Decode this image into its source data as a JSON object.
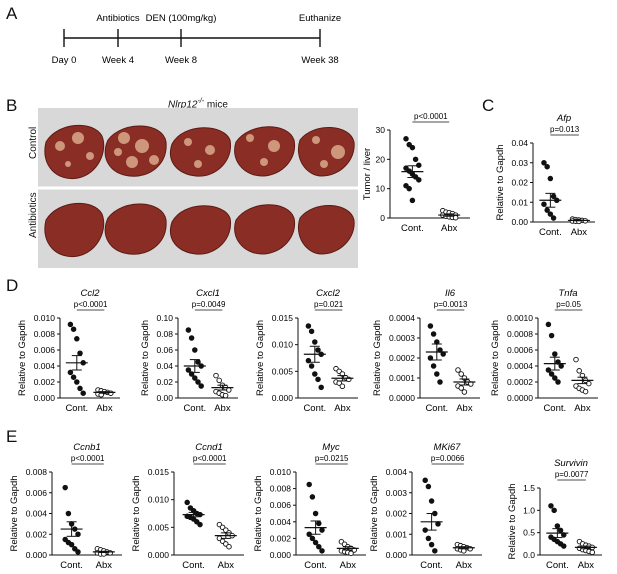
{
  "panels": {
    "A": "A",
    "B": "B",
    "C": "C",
    "D": "D",
    "E": "E"
  },
  "timeline": {
    "events": [
      {
        "above": "",
        "below": "Day 0",
        "pos": 0
      },
      {
        "above": "Antibiotics",
        "below": "Week 4",
        "pos": 4
      },
      {
        "above": "DEN (100mg/kg)",
        "below": "Week 8",
        "pos": 8
      },
      {
        "above": "Euthanize",
        "below": "Week 38",
        "pos": 38
      }
    ]
  },
  "liver_images": {
    "title_gene": "Nlrp12",
    "title_sup": "-/-",
    "title_suffix": " mice",
    "rows": [
      "Control",
      "Antibiotics"
    ],
    "colors": {
      "liver": "#8a2e25",
      "liver_dark": "#5e1a14",
      "tumor": "#d9a98c",
      "background": "#d8d8d8"
    }
  },
  "chart_data": [
    {
      "id": "B",
      "type": "scatter",
      "title": "",
      "ylabel": "Tumor / liver",
      "ylim": [
        0,
        30
      ],
      "yticks": [
        "0",
        "10",
        "20",
        "30"
      ],
      "categories": [
        "Cont.",
        "Abx"
      ],
      "pvalue": "p<0.0001",
      "series": [
        {
          "name": "Cont.",
          "filled": true,
          "mean": 15.8,
          "sem": 2.0,
          "values": [
            27,
            25,
            24,
            20,
            18,
            17,
            16,
            15,
            14,
            13,
            11,
            10,
            6
          ]
        },
        {
          "name": "Abx",
          "filled": false,
          "mean": 1.0,
          "sem": 0.4,
          "values": [
            2.5,
            2,
            1.8,
            1.5,
            1,
            1,
            0.6,
            0.4,
            0.2,
            0.1
          ]
        }
      ]
    },
    {
      "id": "C",
      "type": "scatter",
      "title": "Afp",
      "ylabel": "Relative to Gapdh",
      "ylim": [
        0,
        0.04
      ],
      "yticks": [
        "0.00",
        "0.01",
        "0.02",
        "0.03",
        "0.04"
      ],
      "categories": [
        "Cont.",
        "Abx"
      ],
      "pvalue": "p=0.013",
      "series": [
        {
          "name": "Cont.",
          "filled": true,
          "mean": 0.011,
          "sem": 0.0035,
          "values": [
            0.03,
            0.028,
            0.022,
            0.013,
            0.011,
            0.009,
            0.006,
            0.004,
            0.002
          ]
        },
        {
          "name": "Abx",
          "filled": false,
          "mean": 0.0008,
          "sem": 0.0002,
          "values": [
            0.0015,
            0.0012,
            0.001,
            0.0008,
            0.0006,
            0.0005,
            0.0004,
            0.0003
          ]
        }
      ]
    },
    {
      "id": "D1",
      "type": "scatter",
      "title": "Ccl2",
      "ylabel": "Relative to Gapdh",
      "ylim": [
        0,
        0.01
      ],
      "yticks": [
        "0.000",
        "0.002",
        "0.004",
        "0.006",
        "0.008",
        "0.010"
      ],
      "categories": [
        "Cont.",
        "Abx"
      ],
      "pvalue": "p<0.0001",
      "series": [
        {
          "name": "Cont.",
          "filled": true,
          "mean": 0.0044,
          "sem": 0.0009,
          "values": [
            0.0092,
            0.0086,
            0.0074,
            0.0056,
            0.0044,
            0.0032,
            0.0026,
            0.002,
            0.0012,
            0.0006
          ]
        },
        {
          "name": "Abx",
          "filled": false,
          "mean": 0.0007,
          "sem": 0.0001,
          "values": [
            0.001,
            0.0009,
            0.0008,
            0.0007,
            0.0006,
            0.0005,
            0.0004
          ]
        }
      ]
    },
    {
      "id": "D2",
      "type": "scatter",
      "title": "Cxcl1",
      "ylabel": "Relative to Gapdh",
      "ylim": [
        0,
        0.1
      ],
      "yticks": [
        "0.00",
        "0.02",
        "0.04",
        "0.06",
        "0.08",
        "0.10"
      ],
      "categories": [
        "Cont.",
        "Abx"
      ],
      "pvalue": "p=0.0049",
      "series": [
        {
          "name": "Cont.",
          "filled": true,
          "mean": 0.04,
          "sem": 0.008,
          "values": [
            0.085,
            0.075,
            0.06,
            0.045,
            0.04,
            0.035,
            0.03,
            0.025,
            0.02,
            0.015
          ]
        },
        {
          "name": "Abx",
          "filled": false,
          "mean": 0.013,
          "sem": 0.003,
          "values": [
            0.028,
            0.022,
            0.016,
            0.013,
            0.01,
            0.008,
            0.006,
            0.004,
            0.003
          ]
        }
      ]
    },
    {
      "id": "D3",
      "type": "scatter",
      "title": "Cxcl2",
      "ylabel": "Relative to Gapdh",
      "ylim": [
        0,
        0.015
      ],
      "yticks": [
        "0.000",
        "0.005",
        "0.010",
        "0.015"
      ],
      "categories": [
        "Cont.",
        "Abx"
      ],
      "pvalue": "p=0.021",
      "series": [
        {
          "name": "Cont.",
          "filled": true,
          "mean": 0.0082,
          "sem": 0.0015,
          "values": [
            0.0135,
            0.0125,
            0.0105,
            0.009,
            0.0082,
            0.007,
            0.006,
            0.0045,
            0.0035,
            0.002
          ]
        },
        {
          "name": "Abx",
          "filled": false,
          "mean": 0.0037,
          "sem": 0.0005,
          "values": [
            0.0055,
            0.005,
            0.0045,
            0.0038,
            0.0035,
            0.003,
            0.0028,
            0.0022
          ]
        }
      ]
    },
    {
      "id": "D4",
      "type": "scatter",
      "title": "Il6",
      "ylabel": "Relative to Gapdh",
      "ylim": [
        0,
        0.0004
      ],
      "yticks": [
        "0.0000",
        "0.0001",
        "0.0002",
        "0.0003",
        "0.0004"
      ],
      "categories": [
        "Cont.",
        "Abx"
      ],
      "pvalue": "p=0.0013",
      "series": [
        {
          "name": "Cont.",
          "filled": true,
          "mean": 0.00023,
          "sem": 4e-05,
          "values": [
            0.00036,
            0.00032,
            0.00028,
            0.00024,
            0.00022,
            0.0002,
            0.00016,
            0.00012,
            8e-05
          ]
        },
        {
          "name": "Abx",
          "filled": false,
          "mean": 8e-05,
          "sem": 1.5e-05,
          "values": [
            0.00014,
            0.00012,
            0.0001,
            8e-05,
            7e-05,
            6e-05,
            5e-05,
            3e-05
          ]
        }
      ]
    },
    {
      "id": "D5",
      "type": "scatter",
      "title": "Tnfa",
      "ylabel": "Relative to Gapdh",
      "ylim": [
        0,
        0.001
      ],
      "yticks": [
        "0.0000",
        "0.0002",
        "0.0004",
        "0.0006",
        "0.0008",
        "0.0010"
      ],
      "categories": [
        "Cont.",
        "Abx"
      ],
      "pvalue": "p=0.05",
      "series": [
        {
          "name": "Cont.",
          "filled": true,
          "mean": 0.00043,
          "sem": 8e-05,
          "values": [
            0.00092,
            0.00078,
            0.00055,
            0.00045,
            0.0004,
            0.00035,
            0.0003,
            0.00025,
            0.0002
          ]
        },
        {
          "name": "Abx",
          "filled": false,
          "mean": 0.00022,
          "sem": 4e-05,
          "values": [
            0.00048,
            0.00034,
            0.00028,
            0.00022,
            0.00018,
            0.00015,
            0.00012,
            0.0001,
            8e-05
          ]
        }
      ]
    },
    {
      "id": "E1",
      "type": "scatter",
      "title": "Ccnb1",
      "ylabel": "Relative to Gapdh",
      "ylim": [
        0,
        0.008
      ],
      "yticks": [
        "0.000",
        "0.002",
        "0.004",
        "0.006",
        "0.008"
      ],
      "categories": [
        "Cont.",
        "Abx"
      ],
      "pvalue": "p<0.0001",
      "series": [
        {
          "name": "Cont.",
          "filled": true,
          "mean": 0.0025,
          "sem": 0.0007,
          "values": [
            0.0065,
            0.004,
            0.003,
            0.0025,
            0.002,
            0.0015,
            0.0012,
            0.001,
            0.0006,
            0.0003
          ]
        },
        {
          "name": "Abx",
          "filled": false,
          "mean": 0.0003,
          "sem": 6e-05,
          "values": [
            0.0006,
            0.0005,
            0.0004,
            0.0003,
            0.0002,
            0.0002,
            0.0001,
            0.0001
          ]
        }
      ]
    },
    {
      "id": "E2",
      "type": "scatter",
      "title": "Ccnd1",
      "ylabel": "Relative to Gapdh",
      "ylim": [
        0,
        0.015
      ],
      "yticks": [
        "0.000",
        "0.005",
        "0.010",
        "0.015"
      ],
      "categories": [
        "Cont.",
        "Abx"
      ],
      "pvalue": "p<0.0001",
      "series": [
        {
          "name": "Cont.",
          "filled": true,
          "mean": 0.0073,
          "sem": 0.0004,
          "values": [
            0.0095,
            0.0085,
            0.008,
            0.0075,
            0.0073,
            0.007,
            0.0068,
            0.0065,
            0.006,
            0.0055
          ]
        },
        {
          "name": "Abx",
          "filled": false,
          "mean": 0.0035,
          "sem": 0.0005,
          "values": [
            0.0055,
            0.005,
            0.0045,
            0.004,
            0.0035,
            0.003,
            0.0025,
            0.002,
            0.0015
          ]
        }
      ]
    },
    {
      "id": "E3",
      "type": "scatter",
      "title": "Myc",
      "ylabel": "Relative to Gapdh",
      "ylim": [
        0,
        0.01
      ],
      "yticks": [
        "0.000",
        "0.002",
        "0.004",
        "0.006",
        "0.008",
        "0.010"
      ],
      "categories": [
        "Cont.",
        "Abx"
      ],
      "pvalue": "p=0.0215",
      "series": [
        {
          "name": "Cont.",
          "filled": true,
          "mean": 0.0033,
          "sem": 0.0008,
          "values": [
            0.0085,
            0.007,
            0.005,
            0.0038,
            0.003,
            0.0025,
            0.002,
            0.0015,
            0.001,
            0.0005
          ]
        },
        {
          "name": "Abx",
          "filled": false,
          "mean": 0.0008,
          "sem": 0.0002,
          "values": [
            0.0016,
            0.0013,
            0.001,
            0.0008,
            0.0006,
            0.0005,
            0.0004,
            0.0003,
            0.0002
          ]
        }
      ]
    },
    {
      "id": "E4",
      "type": "scatter",
      "title": "MKi67",
      "ylabel": "Relative to Gapdh",
      "ylim": [
        0,
        0.004
      ],
      "yticks": [
        "0.000",
        "0.001",
        "0.002",
        "0.003",
        "0.004"
      ],
      "categories": [
        "Cont.",
        "Abx"
      ],
      "pvalue": "p=0.0066",
      "series": [
        {
          "name": "Cont.",
          "filled": true,
          "mean": 0.0016,
          "sem": 0.0004,
          "values": [
            0.0036,
            0.0033,
            0.0026,
            0.002,
            0.0015,
            0.0012,
            0.0008,
            0.0005,
            0.0002
          ]
        },
        {
          "name": "Abx",
          "filled": false,
          "mean": 0.00035,
          "sem": 5e-05,
          "values": [
            0.0005,
            0.00045,
            0.0004,
            0.00035,
            0.0003,
            0.0003,
            0.00025,
            0.0002
          ]
        }
      ]
    },
    {
      "id": "E5",
      "type": "scatter",
      "title": "Survivin",
      "ylabel": "Relative to Gapdh",
      "ylim": [
        0,
        1.5
      ],
      "yticks": [
        "0.0",
        "0.5",
        "1.0",
        "1.5"
      ],
      "categories": [
        "Cont.",
        "Abx"
      ],
      "pvalue": "p=0.0077",
      "series": [
        {
          "name": "Cont.",
          "filled": true,
          "mean": 0.49,
          "sem": 0.1,
          "values": [
            1.1,
            1.0,
            0.65,
            0.55,
            0.45,
            0.4,
            0.35,
            0.3,
            0.25,
            0.2
          ]
        },
        {
          "name": "Abx",
          "filled": false,
          "mean": 0.17,
          "sem": 0.03,
          "values": [
            0.3,
            0.25,
            0.22,
            0.2,
            0.17,
            0.15,
            0.12,
            0.1,
            0.08,
            0.06
          ]
        }
      ]
    }
  ]
}
